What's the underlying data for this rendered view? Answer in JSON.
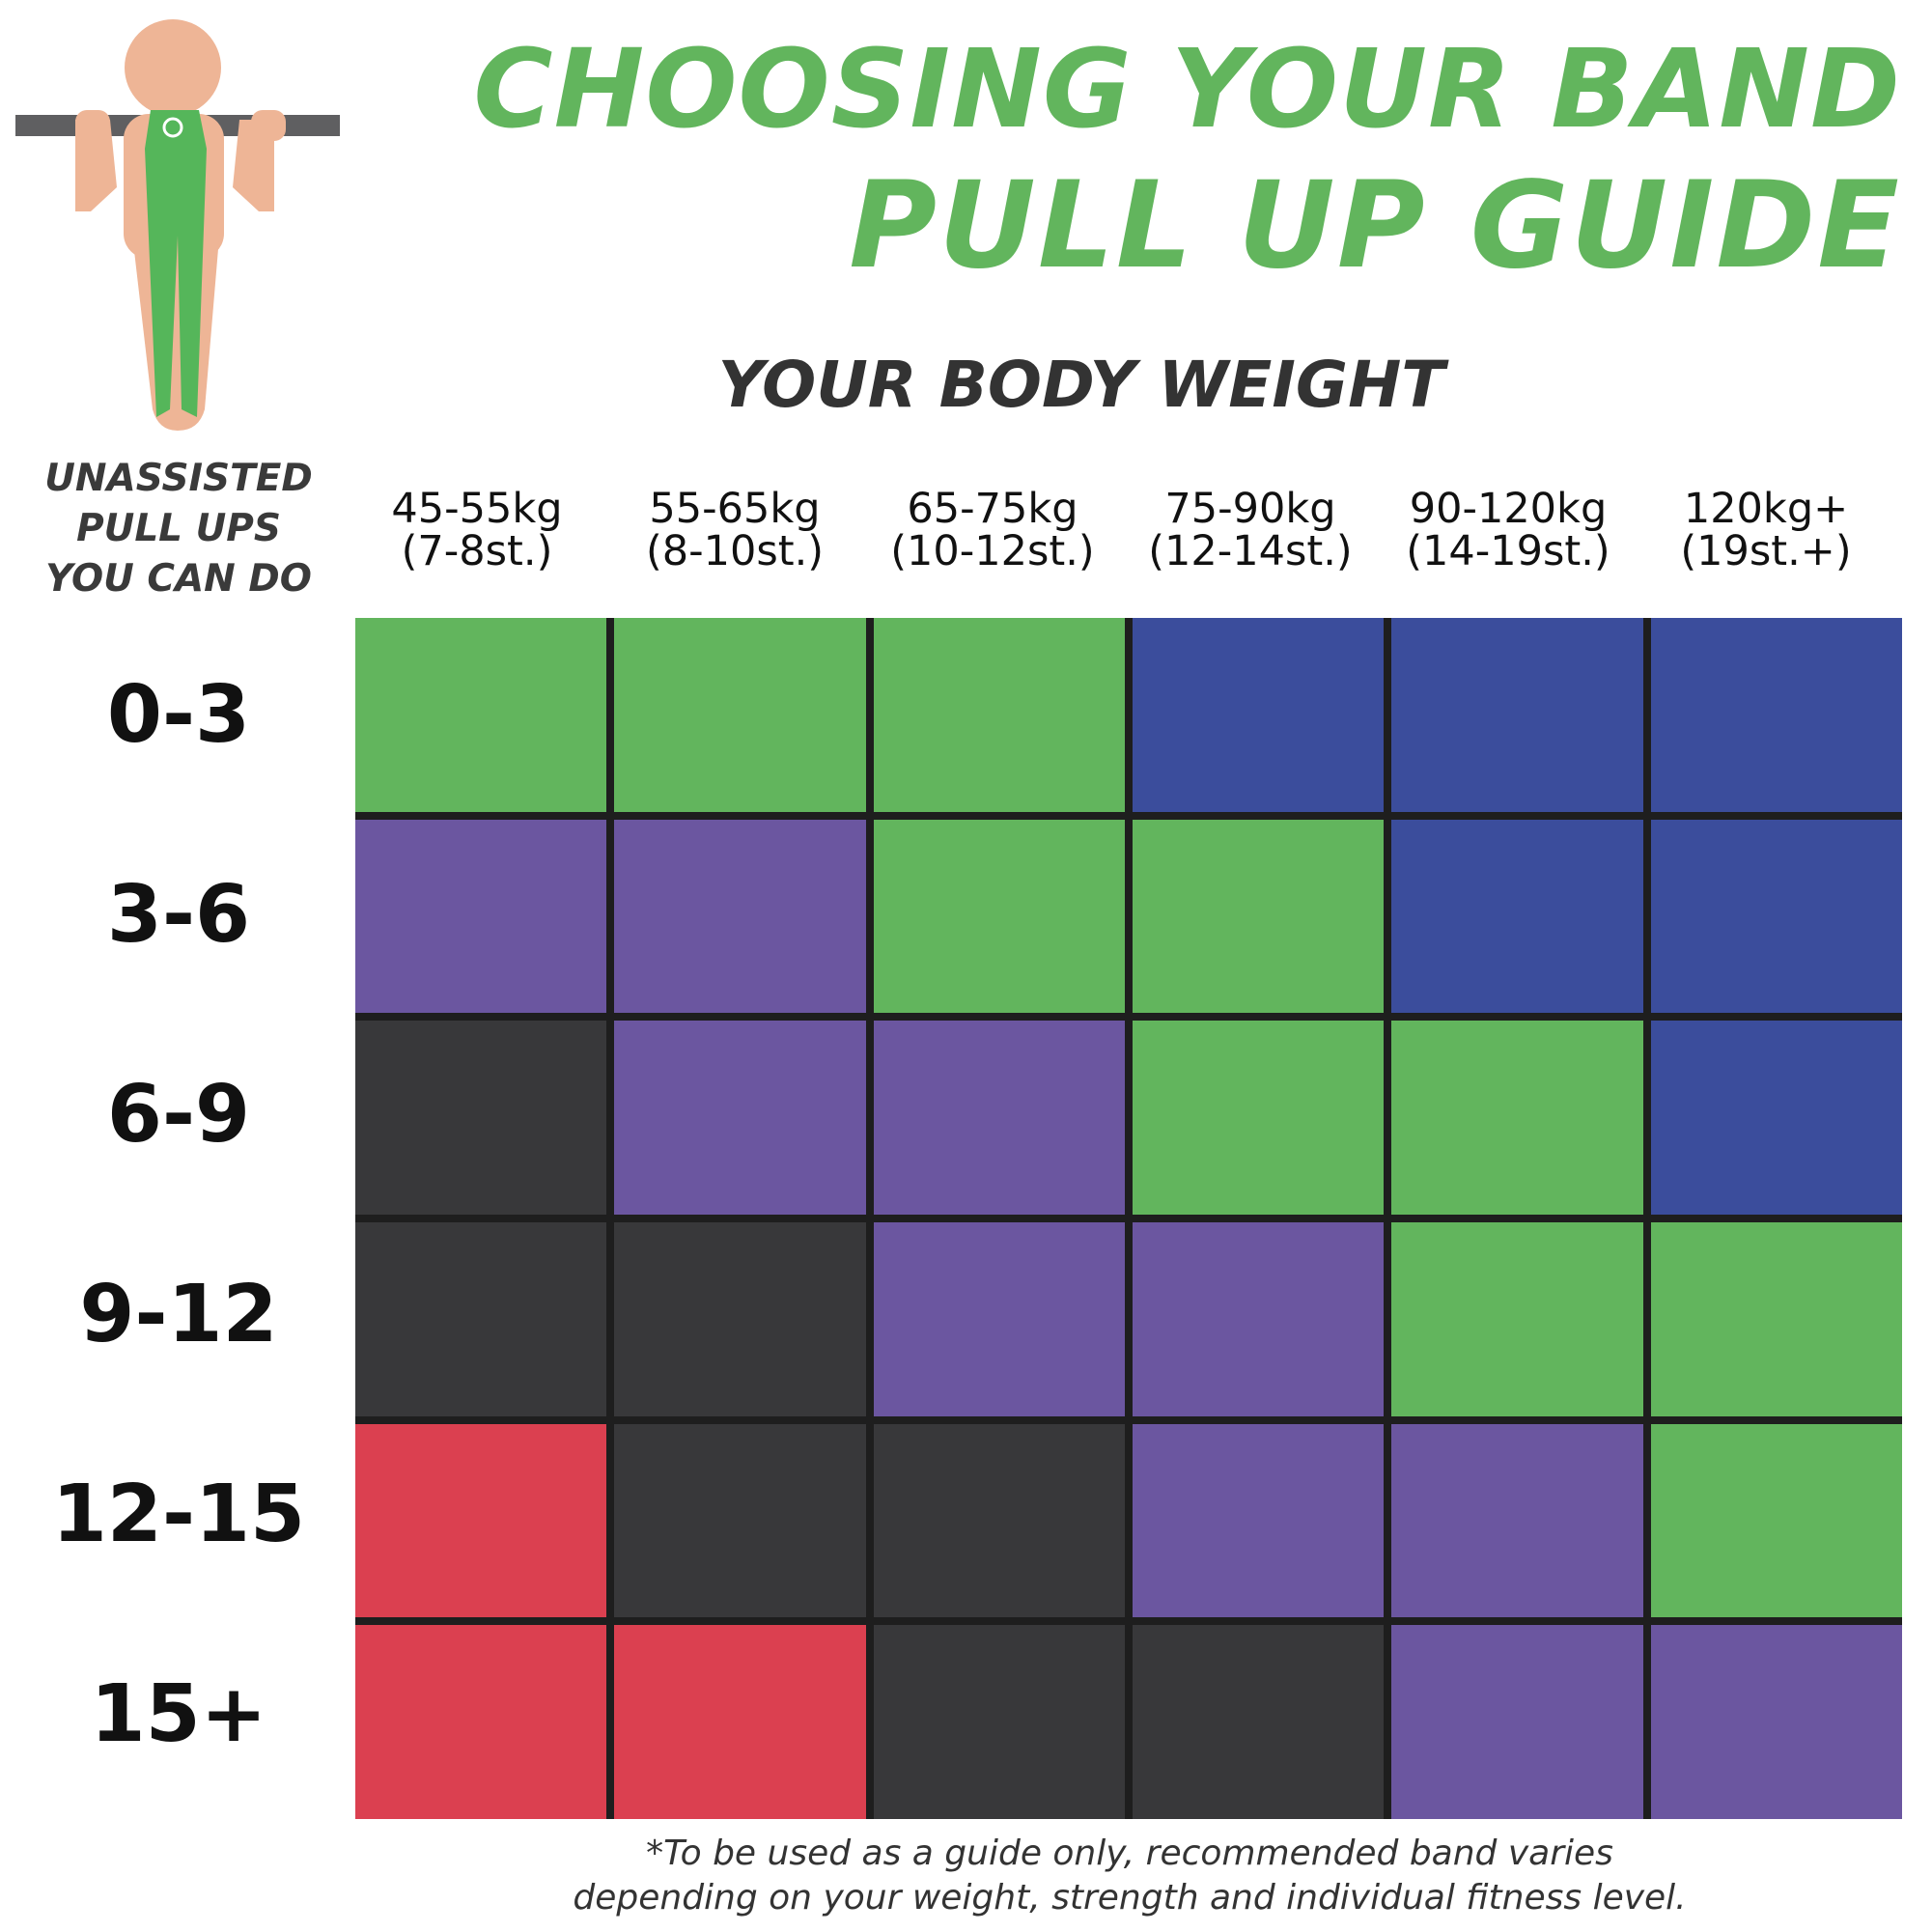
{
  "title_line1": "CHOOSING YOUR BAND",
  "title_line2": "PULL UP GUIDE",
  "colors": {
    "accent": "#62b55d",
    "green": "#62b55d",
    "blue": "#3b4d9c",
    "purple": "#6b56a0",
    "black": "#38383a",
    "red": "#db4050",
    "gridline": "#1e1e1e"
  },
  "chart_data": {
    "type": "heatmap",
    "title": "YOUR BODY WEIGHT",
    "ylabel": [
      "UNASSISTED",
      "PULL UPS",
      "YOU CAN DO"
    ],
    "columns": [
      {
        "kg": "45-55kg",
        "st": "(7-8st.)"
      },
      {
        "kg": "55-65kg",
        "st": "(8-10st.)"
      },
      {
        "kg": "65-75kg",
        "st": "(10-12st.)"
      },
      {
        "kg": "75-90kg",
        "st": "(12-14st.)"
      },
      {
        "kg": "90-120kg",
        "st": "(14-19st.)"
      },
      {
        "kg": "120kg+",
        "st": "(19st.+)"
      }
    ],
    "rows": [
      "0-3",
      "3-6",
      "6-9",
      "9-12",
      "12-15",
      "15+"
    ],
    "band_colors": [
      [
        "green",
        "green",
        "green",
        "blue",
        "blue",
        "blue"
      ],
      [
        "purple",
        "purple",
        "green",
        "green",
        "blue",
        "blue"
      ],
      [
        "black",
        "purple",
        "purple",
        "green",
        "green",
        "blue"
      ],
      [
        "black",
        "black",
        "purple",
        "purple",
        "green",
        "green"
      ],
      [
        "red",
        "black",
        "black",
        "purple",
        "purple",
        "green"
      ],
      [
        "red",
        "red",
        "black",
        "black",
        "purple",
        "purple"
      ]
    ]
  },
  "footnote": [
    "*To be used as a guide only, recommended band varies",
    "depending on your weight, strength and individual fitness level."
  ]
}
